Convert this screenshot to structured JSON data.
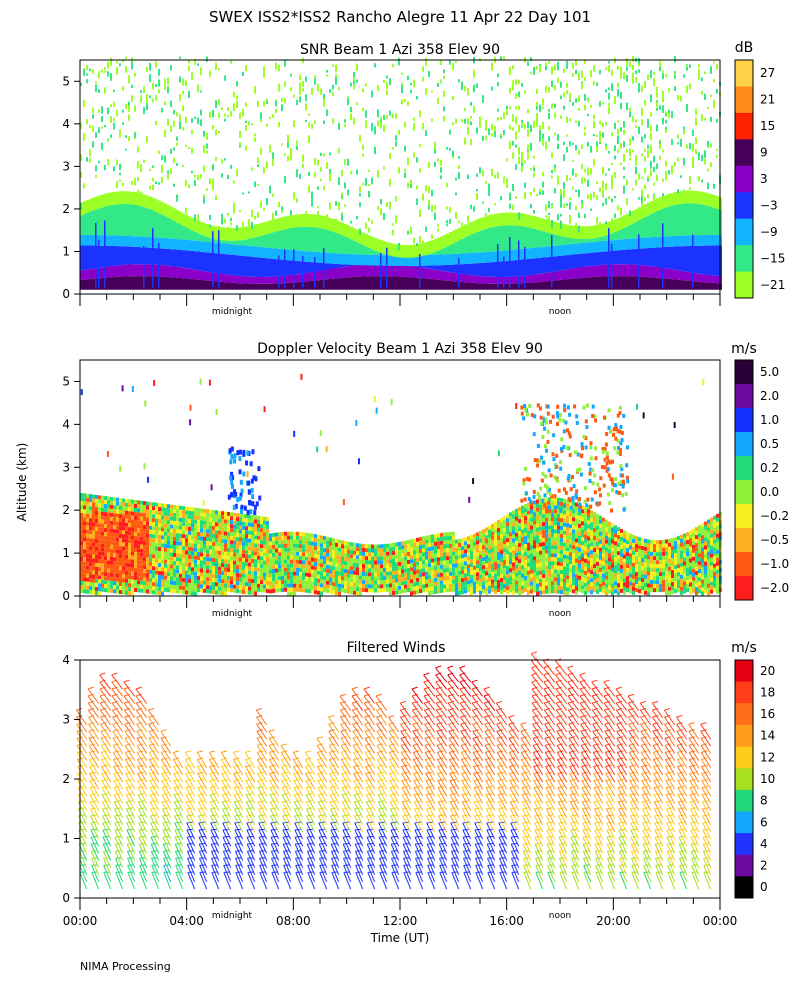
{
  "figure_title": "SWEX ISS2*ISS2 Rancho Alegre  11 Apr 22 Day 101",
  "ylabel_shared": "Altitude (km)",
  "footer": "NIMA Processing",
  "chart_data": [
    {
      "type": "heatmap",
      "title": "SNR Beam 1 Azi 358 Elev 90",
      "ylim": [
        0,
        5.5
      ],
      "yticks": [
        0,
        1,
        2,
        3,
        4,
        5
      ],
      "xmarkers": [
        "midnight",
        "noon"
      ],
      "colorbar": {
        "unit": "dB",
        "labels": [
          "27",
          "21",
          "15",
          "9",
          "3",
          "−3",
          "−9",
          "−15",
          "−21"
        ],
        "colors": [
          "#ffd24a",
          "#ff8c1a",
          "#ff2200",
          "#46005a",
          "#8a00c8",
          "#1c32ff",
          "#12b4ff",
          "#33e886",
          "#9cff26"
        ]
      },
      "layers": [
        {
          "name": "low-snr-scatter",
          "color": "#8cf53c",
          "top_km": 5.4
        },
        {
          "name": "moderate-snr-layer",
          "color": "#33e886",
          "top_km": 2.2
        },
        {
          "name": "high-snr-layer",
          "color": "#1c32ff",
          "top_km": 1.2
        },
        {
          "name": "peak-snr-layer",
          "color": "#46005a",
          "top_km": 0.8
        }
      ]
    },
    {
      "type": "heatmap",
      "title": "Doppler Velocity Beam 1 Azi 358 Elev 90",
      "ylim": [
        0,
        5.5
      ],
      "yticks": [
        0,
        1,
        2,
        3,
        4,
        5
      ],
      "xmarkers": [
        "midnight",
        "noon"
      ],
      "colorbar": {
        "unit": "m/s",
        "labels": [
          "5.0",
          "2.0",
          "1.0",
          "0.5",
          "0.2",
          "0.0",
          "−0.2",
          "−0.5",
          "−1.0",
          "−2.0"
        ],
        "colors": [
          "#2a0038",
          "#6a0aa0",
          "#1432ff",
          "#12a8ff",
          "#22dc7a",
          "#90f03a",
          "#f6f020",
          "#ffb020",
          "#ff5a12",
          "#ff1e1e"
        ]
      }
    },
    {
      "type": "barbs",
      "title": "Filtered Winds",
      "ylim": [
        0,
        4
      ],
      "yticks": [
        0,
        1,
        2,
        3,
        4
      ],
      "xmarkers": [
        "midnight",
        "noon"
      ],
      "xticks": [
        "00:00",
        "04:00",
        "08:00",
        "12:00",
        "16:00",
        "20:00",
        "00:00"
      ],
      "xlabel": "Time (UT)",
      "xlim_hours": [
        0,
        24
      ],
      "colorbar": {
        "unit": "m/s",
        "labels": [
          "20",
          "18",
          "16",
          "14",
          "12",
          "10",
          "8",
          "6",
          "4",
          "2",
          "0"
        ],
        "colors": [
          "#e60012",
          "#ff3d1a",
          "#ff6e1a",
          "#ff9c1a",
          "#ffcc1a",
          "#a8e020",
          "#22d87a",
          "#14a8ff",
          "#2233ff",
          "#6a0aa0",
          "#000000"
        ]
      }
    }
  ]
}
